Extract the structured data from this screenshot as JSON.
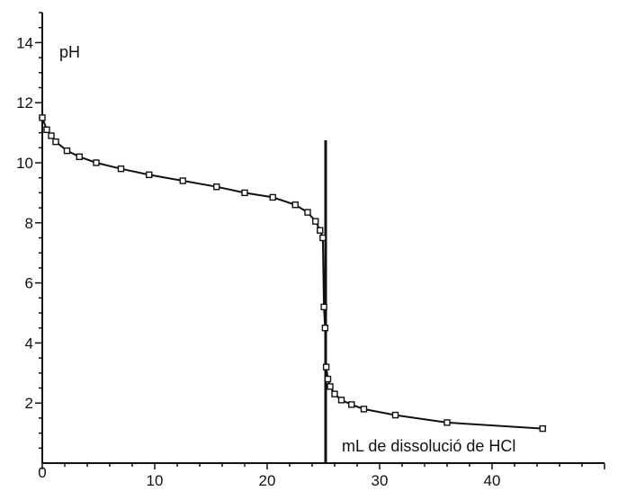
{
  "chart_data": {
    "type": "scatter",
    "title": "",
    "xlabel": "mL de dissolució de HCl",
    "ylabel": "pH",
    "xlim": [
      0,
      50
    ],
    "ylim": [
      0,
      15
    ],
    "x_ticks": [
      0,
      10,
      20,
      30,
      40
    ],
    "y_ticks": [
      2,
      4,
      6,
      8,
      10,
      12,
      14
    ],
    "grid": false,
    "equivalence_line_x": 25.2,
    "series": [
      {
        "name": "",
        "style": "line+open-square-markers",
        "x": [
          0,
          0.4,
          0.8,
          1.2,
          2.2,
          3.3,
          4.8,
          7,
          9.5,
          12.5,
          15.5,
          18,
          20.5,
          22.5,
          23.6,
          24.3,
          24.7,
          24.95,
          25.05,
          25.15,
          25.25,
          25.4,
          25.6,
          26,
          26.6,
          27.5,
          28.6,
          31.4,
          36,
          44.5
        ],
        "y": [
          11.5,
          11.1,
          10.9,
          10.7,
          10.4,
          10.2,
          10.0,
          9.8,
          9.6,
          9.4,
          9.2,
          9.0,
          8.85,
          8.6,
          8.35,
          8.05,
          7.75,
          7.5,
          5.2,
          4.5,
          3.2,
          2.8,
          2.55,
          2.3,
          2.1,
          1.95,
          1.8,
          1.6,
          1.35,
          1.15
        ]
      }
    ]
  }
}
